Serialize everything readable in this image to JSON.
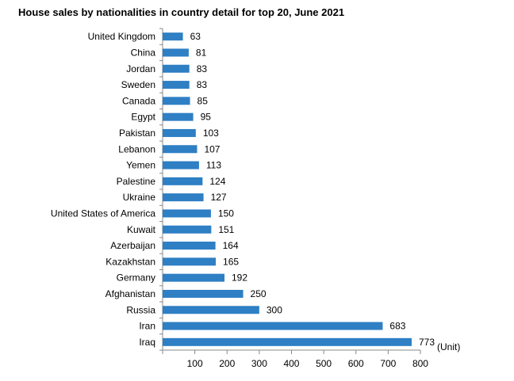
{
  "chart_data": {
    "type": "bar",
    "orientation": "horizontal",
    "title": "House sales by nationalities in country detail for top 20, June 2021",
    "unit_label": "(Unit)",
    "categories": [
      "United Kingdom",
      "China",
      "Jordan",
      "Sweden",
      "Canada",
      "Egypt",
      "Pakistan",
      "Lebanon",
      "Yemen",
      "Palestine",
      "Ukraine",
      "United States of America",
      "Kuwait",
      "Azerbaijan",
      "Kazakhstan",
      "Germany",
      "Afghanistan",
      "Russia",
      "Iran",
      "Iraq"
    ],
    "values": [
      63,
      81,
      83,
      83,
      85,
      95,
      103,
      107,
      113,
      124,
      127,
      150,
      151,
      164,
      165,
      192,
      250,
      300,
      683,
      773
    ],
    "xlim": [
      0,
      800
    ],
    "xticks": [
      100,
      200,
      300,
      400,
      500,
      600,
      700,
      800
    ],
    "grid": false,
    "bar_color": "#2e7fc4"
  }
}
